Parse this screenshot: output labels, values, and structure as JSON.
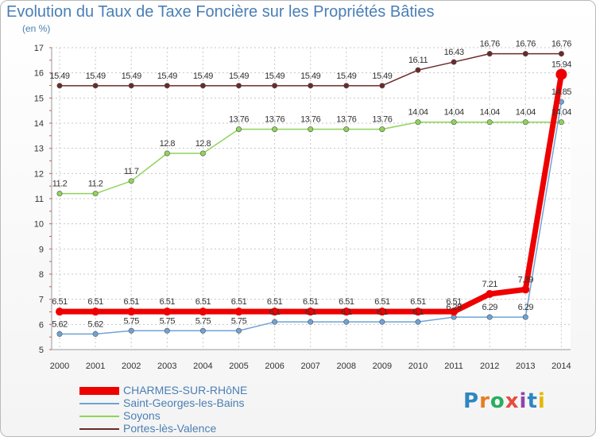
{
  "title": "Evolution du Taux de Taxe Foncière sur les Propriétés Bâties",
  "subtitle": "(en %)",
  "logo": {
    "text": "Proxiti",
    "letters": [
      "P",
      "r",
      "o",
      "x",
      "i",
      "t",
      "i"
    ],
    "colors": [
      "#2e86c1",
      "#e67e22",
      "#27ae60",
      "#e74c3c",
      "#8e44ad",
      "#2e86c1",
      "#e6b800"
    ]
  },
  "chart_data": {
    "type": "line",
    "title": "Evolution du Taux de Taxe Foncière sur les Propriétés Bâties",
    "ylabel": "(en %)",
    "xlabel": "",
    "categories": [
      "2000",
      "2001",
      "2002",
      "2003",
      "2004",
      "2005",
      "2006",
      "2007",
      "2008",
      "2009",
      "2010",
      "2011",
      "2012",
      "2013",
      "2014"
    ],
    "ylim": [
      5,
      17
    ],
    "yticks": [
      "5",
      "6",
      "7",
      "8",
      "9",
      "10",
      "11",
      "12",
      "13",
      "14",
      "15",
      "16",
      "17"
    ],
    "grid": true,
    "series": [
      {
        "name": "Portes-lès-Valence",
        "color": "#6b2a2a",
        "width": 1.5,
        "values": [
          15.49,
          15.49,
          15.49,
          15.49,
          15.49,
          15.49,
          15.49,
          15.49,
          15.49,
          15.49,
          16.11,
          16.43,
          16.76,
          16.76,
          16.76
        ],
        "labels": [
          "15.49",
          "15.49",
          "15.49",
          "15.49",
          "15.49",
          "15.49",
          "15.49",
          "15.49",
          "15.49",
          "15.49",
          "16.11",
          "16.43",
          "16.76",
          "16.76",
          "16.76"
        ]
      },
      {
        "name": "Soyons",
        "color": "#8fd45a",
        "width": 1.5,
        "values": [
          11.2,
          11.2,
          11.7,
          12.8,
          12.8,
          13.76,
          13.76,
          13.76,
          13.76,
          13.76,
          14.04,
          14.04,
          14.04,
          14.04,
          14.04
        ],
        "labels": [
          "11.2",
          "11.2",
          "11.7",
          "12.8",
          "12.8",
          "13.76",
          "13.76",
          "13.76",
          "13.76",
          "13.76",
          "14.04",
          "14.04",
          "14.04",
          "14.04",
          "14.04"
        ]
      },
      {
        "name": "Saint-Georges-les-Bains",
        "color": "#6fa3d6",
        "width": 1.5,
        "values": [
          5.62,
          5.62,
          5.75,
          5.75,
          5.75,
          5.75,
          6.1,
          6.1,
          6.1,
          6.1,
          6.1,
          6.29,
          6.29,
          6.29,
          14.85
        ],
        "labels": [
          "5.62",
          "5.62",
          "5.75",
          "5.75",
          "5.75",
          "5.75",
          "6.1",
          "6.1",
          "6.1",
          "6.1",
          "6.1",
          "6.29",
          "6.29",
          "6.29",
          "14.85"
        ]
      },
      {
        "name": "CHARMES-SUR-RHôNE",
        "color": "#ee0000",
        "width": 7,
        "values": [
          6.51,
          6.51,
          6.51,
          6.51,
          6.51,
          6.51,
          6.51,
          6.51,
          6.51,
          6.51,
          6.51,
          6.51,
          7.21,
          7.39,
          15.94
        ],
        "labels": [
          "6.51",
          "6.51",
          "6.51",
          "6.51",
          "6.51",
          "6.51",
          "6.51",
          "6.51",
          "6.51",
          "6.51",
          "6.51",
          "6.51",
          "7.21",
          "7.39",
          "15.94"
        ]
      }
    ],
    "legend": [
      {
        "name": "CHARMES-SUR-RHôNE",
        "color": "#ee0000",
        "thick": true
      },
      {
        "name": "Saint-Georges-les-Bains",
        "color": "#6fa3d6",
        "thick": false
      },
      {
        "name": "Soyons",
        "color": "#8fd45a",
        "thick": false
      },
      {
        "name": "Portes-lès-Valence",
        "color": "#6b2a2a",
        "thick": false
      }
    ]
  }
}
